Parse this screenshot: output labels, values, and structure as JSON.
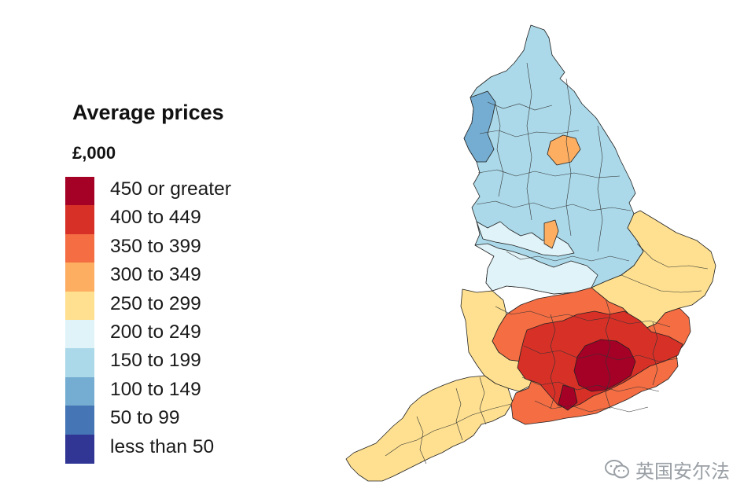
{
  "legend": {
    "title": "Average prices",
    "unit": "£,000",
    "items": [
      {
        "label": "450 or greater",
        "color": "#a50026"
      },
      {
        "label": "400 to 449",
        "color": "#d73027"
      },
      {
        "label": "350 to 399",
        "color": "#f46d43"
      },
      {
        "label": "300 to 349",
        "color": "#fdae61"
      },
      {
        "label": "250 to 299",
        "color": "#fee090"
      },
      {
        "label": "200 to 249",
        "color": "#e0f3f8"
      },
      {
        "label": "150 to 199",
        "color": "#abd9e9"
      },
      {
        "label": "100 to 149",
        "color": "#74add1"
      },
      {
        "label": "50 to 99",
        "color": "#4575b4"
      },
      {
        "label": "less than 50",
        "color": "#313695"
      }
    ]
  },
  "map": {
    "region": "England",
    "layers": [
      {
        "name": "north",
        "color": "#abd9e9"
      },
      {
        "name": "northwest-coast",
        "color": "#74add1"
      },
      {
        "name": "midlands",
        "color": "#e0f3f8"
      },
      {
        "name": "yorkshire-patch",
        "color": "#fdae61"
      },
      {
        "name": "east",
        "color": "#fee090"
      },
      {
        "name": "southwest",
        "color": "#fee090"
      },
      {
        "name": "south-east",
        "color": "#f46d43"
      },
      {
        "name": "home-counties",
        "color": "#d73027"
      },
      {
        "name": "london",
        "color": "#a50026"
      }
    ]
  },
  "watermark": {
    "text": "英国安尔法",
    "icon": "wechat-icon"
  }
}
